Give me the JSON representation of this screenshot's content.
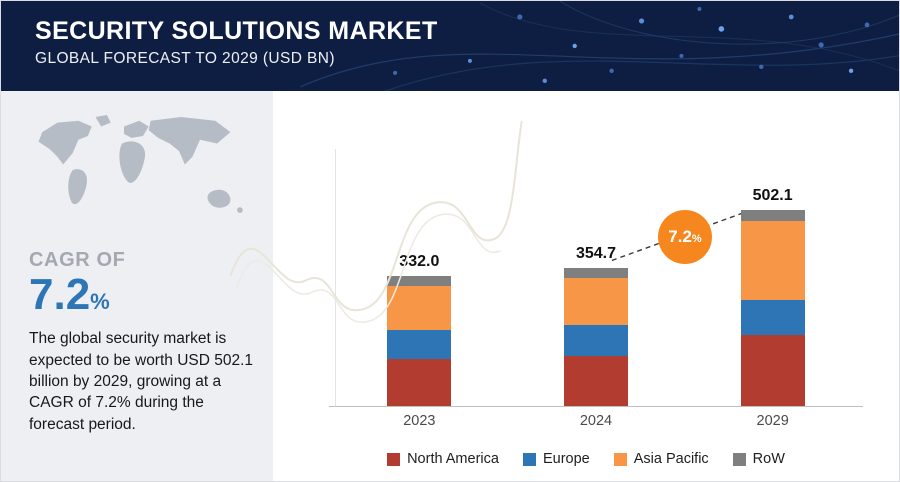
{
  "header": {
    "title": "SECURITY SOLUTIONS MARKET",
    "subtitle": "GLOBAL FORECAST TO 2029 (USD BN)"
  },
  "sidebar": {
    "map_icon": "world-map-icon",
    "cagr_label": "CAGR OF",
    "cagr_value": "7.2",
    "cagr_unit": "%",
    "description": "The global security market is expected to be worth USD 502.1 billion by 2029, growing at a CAGR of 7.2% during the forecast period."
  },
  "chart_data": {
    "type": "bar",
    "stacked": true,
    "title": "",
    "xlabel": "",
    "ylabel": "",
    "unit": "USD BN",
    "categories": [
      "2023",
      "2024",
      "2029"
    ],
    "totals": [
      332.0,
      354.7,
      502.1
    ],
    "totals_labels": [
      "332.0",
      "354.7",
      "502.1"
    ],
    "series": [
      {
        "name": "North America",
        "color": "#b13c2f",
        "values": [
          120,
          128,
          181
        ]
      },
      {
        "name": "Europe",
        "color": "#2e75b6",
        "values": [
          75,
          80,
          91
        ]
      },
      {
        "name": "Asia Pacific",
        "color": "#f79646",
        "values": [
          112,
          120,
          203
        ]
      },
      {
        "name": "RoW",
        "color": "#7f7f7f",
        "values": [
          25,
          26.7,
          27.1
        ]
      }
    ],
    "growth_badge": {
      "value": "7.2",
      "unit": "%"
    },
    "legend_position": "bottom",
    "ylim": [
      0,
      520
    ],
    "grid": false
  },
  "colors": {
    "header_bg": "#0e1e42",
    "sidebar_bg": "#edeff2",
    "accent_blue": "#2e75b6",
    "badge_orange": "#f6871f"
  }
}
